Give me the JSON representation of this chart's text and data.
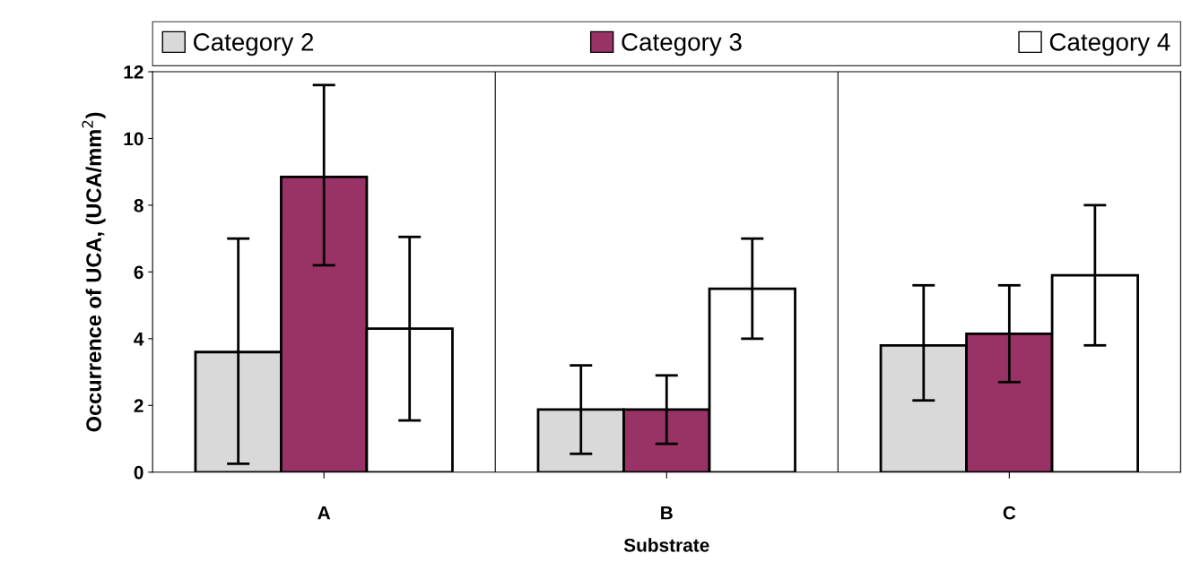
{
  "chart_data": {
    "type": "bar",
    "xlabel": "Substrate",
    "ylabel": "Occurrence of UCA, (UCA/mm$^{2}$)",
    "categories": [
      "A",
      "B",
      "C"
    ],
    "series": [
      {
        "name": "Category 2",
        "color": "#d9d9d9",
        "values": [
          3.6,
          1.88,
          3.8
        ],
        "errors": [
          [
            0.25,
            7.0
          ],
          [
            0.55,
            3.2
          ],
          [
            2.15,
            5.6
          ]
        ]
      },
      {
        "name": "Category 3",
        "color": "#993366",
        "values": [
          8.85,
          1.88,
          4.15
        ],
        "errors": [
          [
            6.2,
            11.6
          ],
          [
            0.85,
            2.9
          ],
          [
            2.7,
            5.6
          ]
        ]
      },
      {
        "name": "Category 4",
        "color": "#ffffff",
        "values": [
          4.3,
          5.5,
          5.9
        ],
        "errors": [
          [
            1.55,
            7.05
          ],
          [
            4.0,
            7.0
          ],
          [
            3.8,
            8.0
          ]
        ]
      }
    ],
    "ylim": [
      0,
      12
    ],
    "yticks": [
      0,
      2,
      4,
      6,
      8,
      10,
      12
    ],
    "grid": "x",
    "legend": "top"
  }
}
